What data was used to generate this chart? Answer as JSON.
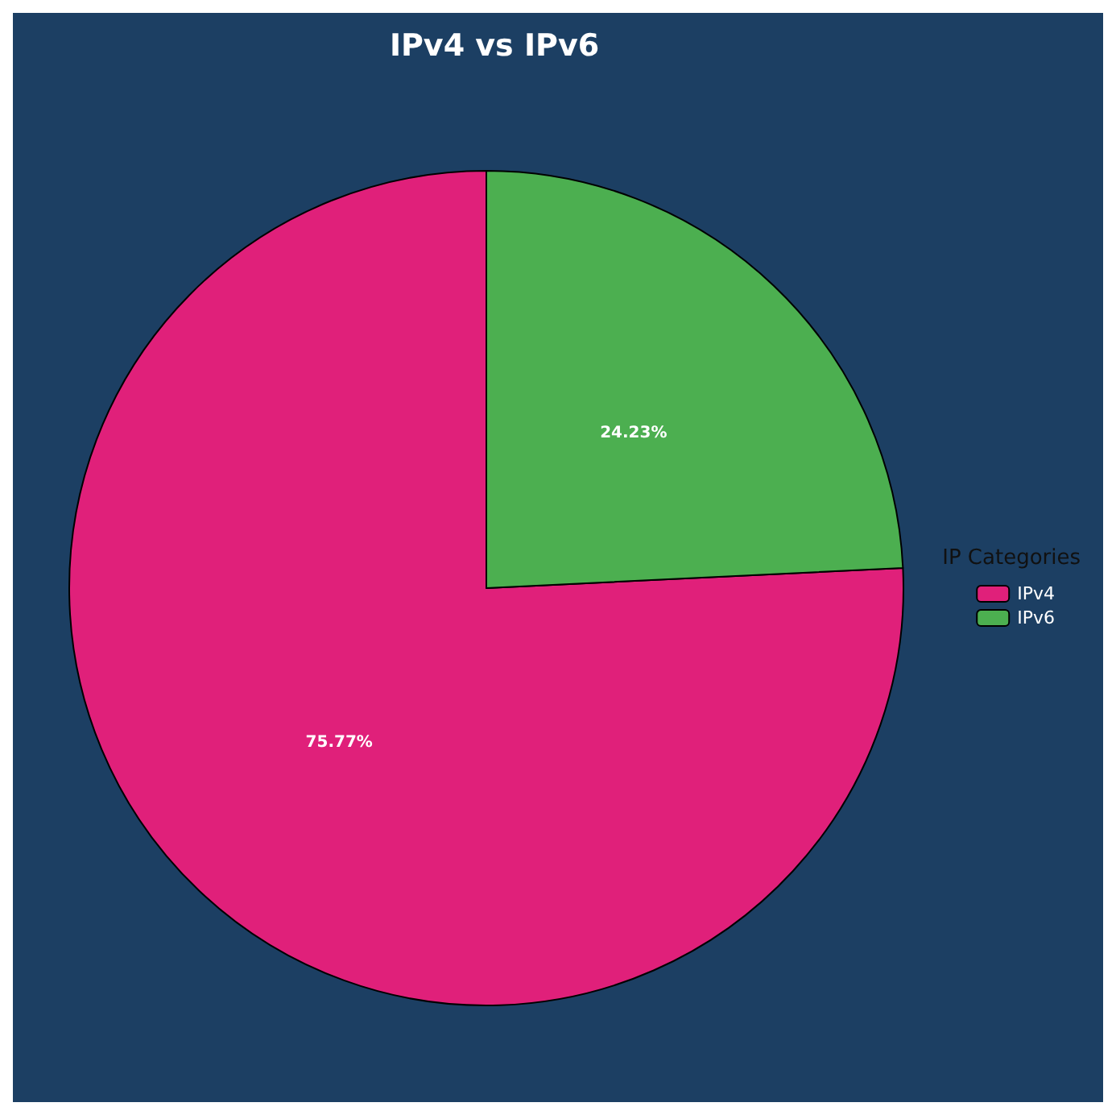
{
  "chart_data": {
    "type": "pie",
    "title": "IPv4 vs IPv6",
    "legend_title": "IP Categories",
    "legend": "right",
    "categories": [
      "IPv4",
      "IPv6"
    ],
    "values": [
      75.77,
      24.23
    ],
    "value_labels": [
      "75.77%",
      "24.23%"
    ],
    "colors": [
      "#e0207a",
      "#4caf50"
    ]
  }
}
